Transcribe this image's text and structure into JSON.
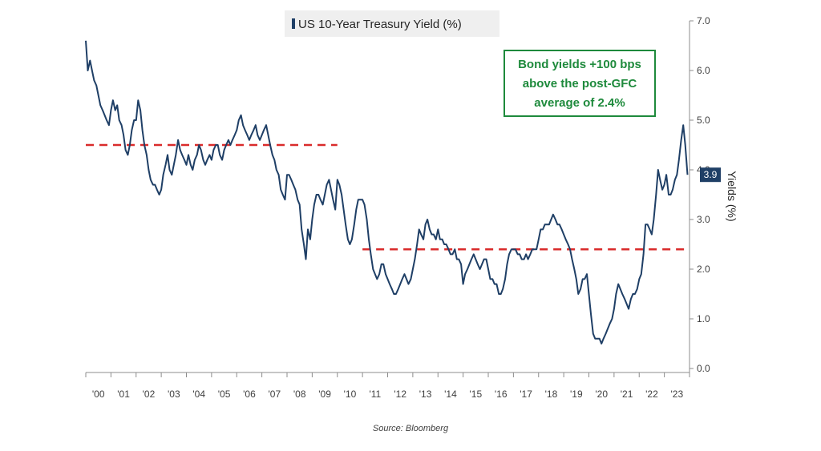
{
  "chart_data": {
    "type": "line",
    "xlabel": "",
    "ylabel": "Yields (%)",
    "ylim": [
      0,
      7
    ],
    "yticks": [
      "0.0",
      "1.0",
      "2.0",
      "3.0",
      "4.0",
      "5.0",
      "6.0",
      "7.0"
    ],
    "xlim": [
      2000,
      2024
    ],
    "x_tick_labels": [
      "'00",
      "'01",
      "'02",
      "'03",
      "'04",
      "'05",
      "'06",
      "'07",
      "'08",
      "'09",
      "'10",
      "'11",
      "'12",
      "'13",
      "'14",
      "'15",
      "'16",
      "'17",
      "'18",
      "'19",
      "'20",
      "'21",
      "'22",
      "'23"
    ],
    "legend": {
      "position": "top-center",
      "entries": [
        "US 10-Year Treasury Yield (%)"
      ]
    },
    "series": [
      {
        "name": "US 10-Year Treasury Yield (%)",
        "color": "#1f3f66",
        "x": [
          2000.0,
          2000.08,
          2000.17,
          2000.25,
          2000.33,
          2000.42,
          2000.5,
          2000.58,
          2000.67,
          2000.75,
          2000.83,
          2000.92,
          2001.0,
          2001.08,
          2001.17,
          2001.25,
          2001.33,
          2001.42,
          2001.5,
          2001.58,
          2001.67,
          2001.75,
          2001.83,
          2001.92,
          2002.0,
          2002.08,
          2002.17,
          2002.25,
          2002.33,
          2002.42,
          2002.5,
          2002.58,
          2002.67,
          2002.75,
          2002.83,
          2002.92,
          2003.0,
          2003.08,
          2003.17,
          2003.25,
          2003.33,
          2003.42,
          2003.5,
          2003.58,
          2003.67,
          2003.75,
          2003.83,
          2003.92,
          2004.0,
          2004.08,
          2004.17,
          2004.25,
          2004.33,
          2004.42,
          2004.5,
          2004.58,
          2004.67,
          2004.75,
          2004.83,
          2004.92,
          2005.0,
          2005.08,
          2005.17,
          2005.25,
          2005.33,
          2005.42,
          2005.5,
          2005.58,
          2005.67,
          2005.75,
          2005.83,
          2005.92,
          2006.0,
          2006.08,
          2006.17,
          2006.25,
          2006.33,
          2006.42,
          2006.5,
          2006.58,
          2006.67,
          2006.75,
          2006.83,
          2006.92,
          2007.0,
          2007.08,
          2007.17,
          2007.25,
          2007.33,
          2007.42,
          2007.5,
          2007.58,
          2007.67,
          2007.75,
          2007.83,
          2007.92,
          2008.0,
          2008.08,
          2008.17,
          2008.25,
          2008.33,
          2008.42,
          2008.5,
          2008.58,
          2008.67,
          2008.75,
          2008.83,
          2008.92,
          2009.0,
          2009.08,
          2009.17,
          2009.25,
          2009.33,
          2009.42,
          2009.5,
          2009.58,
          2009.67,
          2009.75,
          2009.83,
          2009.92,
          2010.0,
          2010.08,
          2010.17,
          2010.25,
          2010.33,
          2010.42,
          2010.5,
          2010.58,
          2010.67,
          2010.75,
          2010.83,
          2010.92,
          2011.0,
          2011.08,
          2011.17,
          2011.25,
          2011.33,
          2011.42,
          2011.5,
          2011.58,
          2011.67,
          2011.75,
          2011.83,
          2011.92,
          2012.0,
          2012.08,
          2012.17,
          2012.25,
          2012.33,
          2012.42,
          2012.5,
          2012.58,
          2012.67,
          2012.75,
          2012.83,
          2012.92,
          2013.0,
          2013.08,
          2013.17,
          2013.25,
          2013.33,
          2013.42,
          2013.5,
          2013.58,
          2013.67,
          2013.75,
          2013.83,
          2013.92,
          2014.0,
          2014.08,
          2014.17,
          2014.25,
          2014.33,
          2014.42,
          2014.5,
          2014.58,
          2014.67,
          2014.75,
          2014.83,
          2014.92,
          2015.0,
          2015.08,
          2015.17,
          2015.25,
          2015.33,
          2015.42,
          2015.5,
          2015.58,
          2015.67,
          2015.75,
          2015.83,
          2015.92,
          2016.0,
          2016.08,
          2016.17,
          2016.25,
          2016.33,
          2016.42,
          2016.5,
          2016.58,
          2016.67,
          2016.75,
          2016.83,
          2016.92,
          2017.0,
          2017.08,
          2017.17,
          2017.25,
          2017.33,
          2017.42,
          2017.5,
          2017.58,
          2017.67,
          2017.75,
          2017.83,
          2017.92,
          2018.0,
          2018.08,
          2018.17,
          2018.25,
          2018.33,
          2018.42,
          2018.5,
          2018.58,
          2018.67,
          2018.75,
          2018.83,
          2018.92,
          2019.0,
          2019.08,
          2019.17,
          2019.25,
          2019.33,
          2019.42,
          2019.5,
          2019.58,
          2019.67,
          2019.75,
          2019.83,
          2019.92,
          2020.0,
          2020.08,
          2020.17,
          2020.25,
          2020.33,
          2020.42,
          2020.5,
          2020.58,
          2020.67,
          2020.75,
          2020.83,
          2020.92,
          2021.0,
          2021.08,
          2021.17,
          2021.25,
          2021.33,
          2021.42,
          2021.5,
          2021.58,
          2021.67,
          2021.75,
          2021.83,
          2021.92,
          2022.0,
          2022.08,
          2022.17,
          2022.25,
          2022.33,
          2022.42,
          2022.5,
          2022.58,
          2022.67,
          2022.75,
          2022.83,
          2022.92,
          2023.0,
          2023.08,
          2023.17,
          2023.25,
          2023.33,
          2023.42,
          2023.5,
          2023.58,
          2023.67,
          2023.75,
          2023.83,
          2023.92
        ],
        "values": [
          6.6,
          6.0,
          6.2,
          6.0,
          5.8,
          5.7,
          5.5,
          5.3,
          5.2,
          5.1,
          5.0,
          4.9,
          5.2,
          5.4,
          5.2,
          5.3,
          5.0,
          4.9,
          4.7,
          4.4,
          4.3,
          4.5,
          4.8,
          5.0,
          5.0,
          5.4,
          5.2,
          4.8,
          4.5,
          4.3,
          4.0,
          3.8,
          3.7,
          3.7,
          3.6,
          3.5,
          3.6,
          3.9,
          4.1,
          4.3,
          4.0,
          3.9,
          4.1,
          4.3,
          4.6,
          4.4,
          4.3,
          4.2,
          4.1,
          4.3,
          4.1,
          4.0,
          4.2,
          4.3,
          4.5,
          4.4,
          4.2,
          4.1,
          4.2,
          4.3,
          4.2,
          4.4,
          4.5,
          4.5,
          4.3,
          4.2,
          4.4,
          4.5,
          4.6,
          4.5,
          4.6,
          4.7,
          4.8,
          5.0,
          5.1,
          4.9,
          4.8,
          4.7,
          4.6,
          4.7,
          4.8,
          4.9,
          4.7,
          4.6,
          4.7,
          4.8,
          4.9,
          4.7,
          4.5,
          4.3,
          4.2,
          4.0,
          3.9,
          3.6,
          3.5,
          3.4,
          3.9,
          3.9,
          3.8,
          3.7,
          3.6,
          3.4,
          3.3,
          2.8,
          2.5,
          2.2,
          2.8,
          2.6,
          3.0,
          3.3,
          3.5,
          3.5,
          3.4,
          3.3,
          3.5,
          3.7,
          3.8,
          3.6,
          3.4,
          3.2,
          3.8,
          3.7,
          3.5,
          3.2,
          2.9,
          2.6,
          2.5,
          2.6,
          2.9,
          3.2,
          3.4,
          3.4,
          3.4,
          3.3,
          3.0,
          2.6,
          2.3,
          2.0,
          1.9,
          1.8,
          1.9,
          2.1,
          2.1,
          1.9,
          1.8,
          1.7,
          1.6,
          1.5,
          1.5,
          1.6,
          1.7,
          1.8,
          1.9,
          1.8,
          1.7,
          1.8,
          2.0,
          2.2,
          2.5,
          2.8,
          2.7,
          2.6,
          2.9,
          3.0,
          2.8,
          2.7,
          2.7,
          2.6,
          2.8,
          2.6,
          2.6,
          2.5,
          2.5,
          2.4,
          2.3,
          2.3,
          2.4,
          2.2,
          2.2,
          2.1,
          1.7,
          1.9,
          2.0,
          2.1,
          2.2,
          2.3,
          2.2,
          2.1,
          2.0,
          2.1,
          2.2,
          2.2,
          2.0,
          1.8,
          1.8,
          1.7,
          1.7,
          1.5,
          1.5,
          1.6,
          1.8,
          2.1,
          2.3,
          2.4,
          2.4,
          2.4,
          2.3,
          2.3,
          2.2,
          2.2,
          2.3,
          2.2,
          2.3,
          2.4,
          2.4,
          2.4,
          2.6,
          2.8,
          2.8,
          2.9,
          2.9,
          2.9,
          3.0,
          3.1,
          3.0,
          2.9,
          2.9,
          2.8,
          2.7,
          2.6,
          2.5,
          2.4,
          2.2,
          2.0,
          1.8,
          1.5,
          1.6,
          1.8,
          1.8,
          1.9,
          1.5,
          1.1,
          0.7,
          0.6,
          0.6,
          0.6,
          0.5,
          0.6,
          0.7,
          0.8,
          0.9,
          1.0,
          1.2,
          1.5,
          1.7,
          1.6,
          1.5,
          1.4,
          1.3,
          1.2,
          1.4,
          1.5,
          1.5,
          1.6,
          1.8,
          1.9,
          2.3,
          2.9,
          2.9,
          2.8,
          2.7,
          3.0,
          3.5,
          4.0,
          3.8,
          3.6,
          3.7,
          3.9,
          3.5,
          3.5,
          3.6,
          3.8,
          3.9,
          4.2,
          4.6,
          4.9,
          4.5,
          3.9
        ]
      }
    ],
    "reference_lines": [
      {
        "y": 4.5,
        "x_start": 2000,
        "x_end": 2010.0,
        "color": "#d92b2b"
      },
      {
        "y": 2.4,
        "x_start": 2011.0,
        "x_end": 2024,
        "color": "#d92b2b"
      }
    ],
    "last_value_label": "3.9",
    "annotation": {
      "lines": [
        "Bond yields +100 bps",
        "above the post-GFC",
        "average of 2.4%"
      ],
      "color": "#1e8a3c",
      "position": "top-right"
    },
    "source": "Source: Bloomberg",
    "grid": false
  }
}
